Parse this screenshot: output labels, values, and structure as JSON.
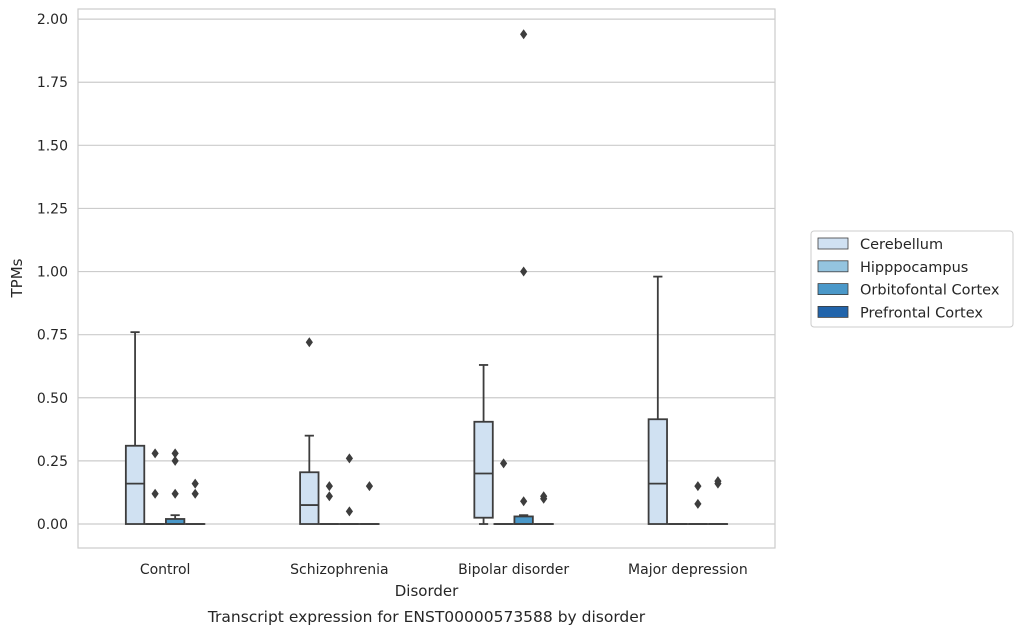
{
  "chart_data": {
    "type": "box",
    "xlabel": "Disorder",
    "ylabel": "TPMs",
    "caption": "Transcript expression for ENST00000573588 by disorder",
    "ylim": [
      -0.095,
      2.04
    ],
    "yticks": [
      "0.00",
      "0.25",
      "0.50",
      "0.75",
      "1.00",
      "1.25",
      "1.50",
      "1.75",
      "2.00"
    ],
    "grid": true,
    "legend_position": "right",
    "categories": [
      "Control",
      "Schizophrenia",
      "Bipolar disorder",
      "Major depression"
    ],
    "series": [
      {
        "name": "Cerebellum",
        "color": "#d0e1f2",
        "boxes": [
          {
            "min": 0.0,
            "q1": 0.0,
            "median": 0.16,
            "q3": 0.31,
            "max": 0.76,
            "outliers": []
          },
          {
            "min": 0.0,
            "q1": 0.0,
            "median": 0.075,
            "q3": 0.205,
            "max": 0.35,
            "outliers": [
              0.72
            ]
          },
          {
            "min": 0.0,
            "q1": 0.025,
            "median": 0.2,
            "q3": 0.405,
            "max": 0.63,
            "outliers": []
          },
          {
            "min": 0.0,
            "q1": 0.0,
            "median": 0.16,
            "q3": 0.415,
            "max": 0.98,
            "outliers": []
          }
        ]
      },
      {
        "name": "Hipppocampus",
        "color": "#94c4df",
        "boxes": [
          {
            "min": 0.0,
            "q1": 0.0,
            "median": 0.0,
            "q3": 0.0,
            "max": 0.0,
            "outliers": [
              0.12,
              0.28
            ]
          },
          {
            "min": 0.0,
            "q1": 0.0,
            "median": 0.0,
            "q3": 0.0,
            "max": 0.0,
            "outliers": [
              0.11,
              0.15
            ]
          },
          {
            "min": 0.0,
            "q1": 0.0,
            "median": 0.0,
            "q3": 0.0,
            "max": 0.0,
            "outliers": [
              0.24
            ]
          },
          {
            "min": 0.0,
            "q1": 0.0,
            "median": 0.0,
            "q3": 0.0,
            "max": 0.0,
            "outliers": []
          }
        ]
      },
      {
        "name": "Orbitofontal Cortex",
        "color": "#4a98c9",
        "boxes": [
          {
            "min": 0.0,
            "q1": 0.0,
            "median": 0.0,
            "q3": 0.02,
            "max": 0.035,
            "outliers": [
              0.12,
              0.25,
              0.28
            ]
          },
          {
            "min": 0.0,
            "q1": 0.0,
            "median": 0.0,
            "q3": 0.0,
            "max": 0.0,
            "outliers": [
              0.05,
              0.26
            ]
          },
          {
            "min": 0.0,
            "q1": 0.0,
            "median": 0.0,
            "q3": 0.03,
            "max": 0.035,
            "outliers": [
              0.09,
              1.0,
              1.94
            ]
          },
          {
            "min": 0.0,
            "q1": 0.0,
            "median": 0.0,
            "q3": 0.0,
            "max": 0.0,
            "outliers": [
              0.08,
              0.15
            ]
          }
        ]
      },
      {
        "name": "Prefrontal Cortex",
        "color": "#2164ab",
        "boxes": [
          {
            "min": 0.0,
            "q1": 0.0,
            "median": 0.0,
            "q3": 0.0,
            "max": 0.0,
            "outliers": [
              0.12,
              0.16
            ]
          },
          {
            "min": 0.0,
            "q1": 0.0,
            "median": 0.0,
            "q3": 0.0,
            "max": 0.0,
            "outliers": [
              0.15
            ]
          },
          {
            "min": 0.0,
            "q1": 0.0,
            "median": 0.0,
            "q3": 0.0,
            "max": 0.0,
            "outliers": [
              0.1,
              0.11
            ]
          },
          {
            "min": 0.0,
            "q1": 0.0,
            "median": 0.0,
            "q3": 0.0,
            "max": 0.0,
            "outliers": [
              0.16,
              0.17
            ]
          }
        ]
      }
    ]
  }
}
